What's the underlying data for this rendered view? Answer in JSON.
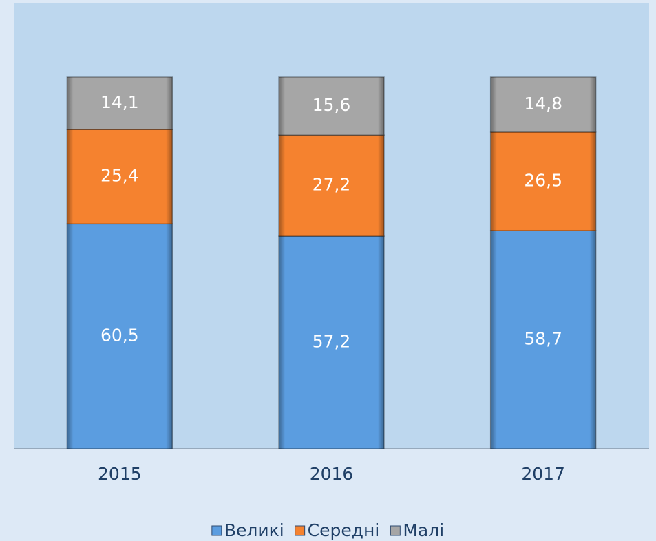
{
  "chart_data": {
    "type": "stacked-bar",
    "categories": [
      "2015",
      "2016",
      "2017"
    ],
    "series": [
      {
        "name": "Великі",
        "color": "#5b9de0",
        "values": [
          60.5,
          57.2,
          58.7
        ],
        "value_labels": [
          "60,5",
          "57,2",
          "58,7"
        ]
      },
      {
        "name": "Середні",
        "color": "#f5822f",
        "values": [
          25.4,
          27.2,
          26.5
        ],
        "value_labels": [
          "25,4",
          "27,2",
          "26,5"
        ]
      },
      {
        "name": "Малі",
        "color": "#a6a6a6",
        "values": [
          14.1,
          15.6,
          14.8
        ],
        "value_labels": [
          "14,1",
          "15,6",
          "14,8"
        ]
      }
    ],
    "legend": "bottom"
  }
}
